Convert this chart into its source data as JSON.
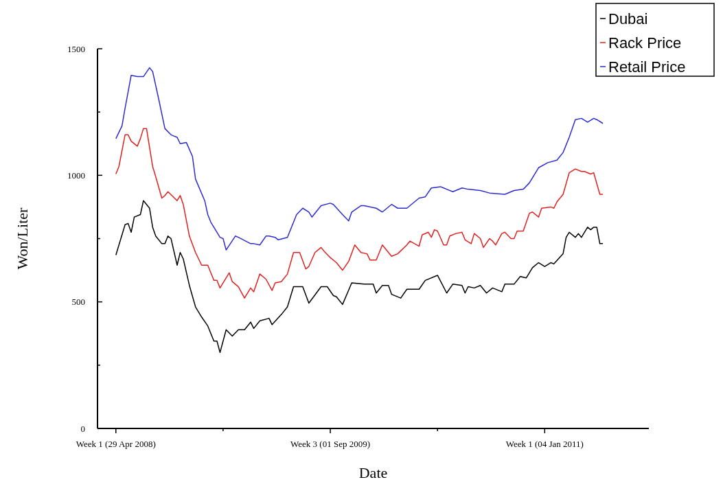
{
  "chart_data": {
    "type": "line",
    "xlabel": "Date",
    "ylabel": "Won/Liter",
    "xlim": [
      "2008-03-18",
      "2011-08-30"
    ],
    "ylim": [
      0,
      1500
    ],
    "xticks": [
      {
        "value": "2008-04-29",
        "label": "Week 1 (29 Apr 2008)"
      },
      {
        "value": "2008-12-30",
        "label": null
      },
      {
        "value": "2009-09-01",
        "label": "Week 3 (01 Sep 2009)"
      },
      {
        "value": "2010-05-04",
        "label": null
      },
      {
        "value": "2011-01-04",
        "label": "Week 1 (04 Jan 2011)"
      }
    ],
    "yticks": [
      0,
      {
        "value": 250,
        "label": null
      },
      500,
      {
        "value": 750,
        "label": null
      },
      1000,
      {
        "value": 1250,
        "label": null
      },
      1500
    ],
    "legend": "top right",
    "series": [
      {
        "name": "Dubai",
        "color": "#000000",
        "x": [
          "2008-04-29",
          "2008-05-06",
          "2008-05-20",
          "2008-05-27",
          "2008-06-03",
          "2008-06-10",
          "2008-06-24",
          "2008-07-01",
          "2008-07-15",
          "2008-07-22",
          "2008-07-29",
          "2008-08-12",
          "2008-08-19",
          "2008-08-26",
          "2008-09-02",
          "2008-09-16",
          "2008-09-23",
          "2008-09-30",
          "2008-10-14",
          "2008-10-28",
          "2008-11-11",
          "2008-11-25",
          "2008-12-09",
          "2008-12-16",
          "2008-12-23",
          "2009-01-06",
          "2009-01-20",
          "2009-02-03",
          "2009-02-17",
          "2009-03-03",
          "2009-03-10",
          "2009-03-24",
          "2009-04-14",
          "2009-04-21",
          "2009-05-12",
          "2009-05-26",
          "2009-06-09",
          "2009-06-30",
          "2009-07-14",
          "2009-08-11",
          "2009-08-25",
          "2009-09-08",
          "2009-09-15",
          "2009-09-29",
          "2009-10-20",
          "2009-11-17",
          "2009-12-08",
          "2009-12-15",
          "2009-12-29",
          "2010-01-12",
          "2010-01-19",
          "2010-02-09",
          "2010-02-23",
          "2010-03-23",
          "2010-04-06",
          "2010-05-04",
          "2010-05-25",
          "2010-06-08",
          "2010-06-29",
          "2010-07-06",
          "2010-07-13",
          "2010-07-27",
          "2010-08-10",
          "2010-08-24",
          "2010-09-07",
          "2010-09-28",
          "2010-10-05",
          "2010-10-26",
          "2010-11-09",
          "2010-11-23",
          "2010-12-07",
          "2010-12-21",
          "2011-01-04",
          "2011-01-18",
          "2011-01-25",
          "2011-02-15",
          "2011-02-22",
          "2011-03-01",
          "2011-03-15",
          "2011-03-22",
          "2011-03-29",
          "2011-04-12",
          "2011-04-19",
          "2011-04-26",
          "2011-05-03",
          "2011-05-10",
          "2011-05-17"
        ],
        "values": [
          685,
          725,
          805,
          810,
          775,
          835,
          845,
          900,
          870,
          795,
          760,
          730,
          730,
          760,
          750,
          645,
          695,
          670,
          565,
          480,
          440,
          405,
          345,
          345,
          300,
          390,
          365,
          390,
          390,
          420,
          395,
          425,
          435,
          410,
          450,
          480,
          560,
          560,
          495,
          560,
          560,
          525,
          520,
          490,
          575,
          570,
          570,
          535,
          565,
          565,
          530,
          515,
          550,
          550,
          585,
          605,
          535,
          570,
          565,
          535,
          560,
          555,
          565,
          535,
          555,
          540,
          570,
          570,
          600,
          595,
          635,
          655,
          640,
          655,
          650,
          690,
          755,
          775,
          755,
          770,
          755,
          795,
          785,
          795,
          795,
          730,
          730
        ]
      },
      {
        "name": "Rack Price",
        "color": "#e0201e",
        "x": [
          "2008-04-29",
          "2008-05-06",
          "2008-05-20",
          "2008-05-27",
          "2008-06-03",
          "2008-06-17",
          "2008-06-24",
          "2008-07-01",
          "2008-07-08",
          "2008-07-22",
          "2008-07-29",
          "2008-08-12",
          "2008-08-19",
          "2008-08-26",
          "2008-09-16",
          "2008-09-23",
          "2008-09-30",
          "2008-10-14",
          "2008-10-28",
          "2008-11-11",
          "2008-11-25",
          "2008-12-09",
          "2008-12-16",
          "2008-12-23",
          "2009-01-13",
          "2009-01-20",
          "2009-02-03",
          "2009-02-17",
          "2009-03-03",
          "2009-03-10",
          "2009-03-24",
          "2009-04-07",
          "2009-04-21",
          "2009-04-28",
          "2009-05-12",
          "2009-05-26",
          "2009-06-09",
          "2009-06-23",
          "2009-07-07",
          "2009-07-14",
          "2009-07-28",
          "2009-08-11",
          "2009-08-18",
          "2009-09-01",
          "2009-09-15",
          "2009-09-29",
          "2009-10-13",
          "2009-10-27",
          "2009-11-10",
          "2009-11-24",
          "2009-12-01",
          "2009-12-15",
          "2009-12-29",
          "2010-01-19",
          "2010-02-02",
          "2010-02-23",
          "2010-03-02",
          "2010-03-23",
          "2010-03-30",
          "2010-04-13",
          "2010-04-20",
          "2010-04-27",
          "2010-05-04",
          "2010-05-18",
          "2010-05-25",
          "2010-06-01",
          "2010-06-15",
          "2010-06-29",
          "2010-07-06",
          "2010-07-20",
          "2010-07-27",
          "2010-08-10",
          "2010-08-17",
          "2010-08-31",
          "2010-09-07",
          "2010-09-14",
          "2010-09-28",
          "2010-10-05",
          "2010-10-19",
          "2010-10-26",
          "2010-11-02",
          "2010-11-16",
          "2010-11-30",
          "2010-12-07",
          "2010-12-21",
          "2010-12-28",
          "2011-01-18",
          "2011-01-25",
          "2011-02-01",
          "2011-02-15",
          "2011-03-01",
          "2011-03-15",
          "2011-03-29",
          "2011-04-05",
          "2011-04-19",
          "2011-04-26",
          "2011-05-10",
          "2011-05-17"
        ],
        "values": [
          1005,
          1035,
          1160,
          1160,
          1135,
          1115,
          1145,
          1185,
          1185,
          1035,
          995,
          910,
          920,
          935,
          900,
          920,
          885,
          760,
          695,
          645,
          645,
          585,
          585,
          555,
          615,
          580,
          560,
          515,
          555,
          540,
          610,
          590,
          545,
          575,
          580,
          610,
          695,
          695,
          630,
          640,
          695,
          715,
          700,
          675,
          655,
          625,
          660,
          725,
          695,
          690,
          665,
          665,
          725,
          680,
          690,
          725,
          740,
          720,
          765,
          775,
          755,
          785,
          780,
          725,
          725,
          760,
          770,
          775,
          745,
          730,
          770,
          750,
          715,
          750,
          740,
          725,
          770,
          775,
          750,
          750,
          780,
          780,
          850,
          855,
          835,
          870,
          875,
          870,
          895,
          925,
          1010,
          1025,
          1015,
          1015,
          1005,
          1010,
          925,
          925
        ]
      },
      {
        "name": "Retail Price",
        "color": "#2b2bd0",
        "x": [
          "2008-04-29",
          "2008-05-13",
          "2008-05-20",
          "2008-06-03",
          "2008-06-17",
          "2008-07-01",
          "2008-07-15",
          "2008-07-22",
          "2008-08-05",
          "2008-08-19",
          "2008-09-02",
          "2008-09-16",
          "2008-09-23",
          "2008-10-07",
          "2008-10-21",
          "2008-10-28",
          "2008-11-18",
          "2008-11-25",
          "2008-12-02",
          "2008-12-23",
          "2008-12-30",
          "2009-01-06",
          "2009-01-27",
          "2009-02-03",
          "2009-03-03",
          "2009-03-10",
          "2009-03-24",
          "2009-04-07",
          "2009-04-14",
          "2009-04-28",
          "2009-05-05",
          "2009-05-26",
          "2009-06-16",
          "2009-06-30",
          "2009-07-14",
          "2009-07-21",
          "2009-08-11",
          "2009-09-01",
          "2009-09-08",
          "2009-09-29",
          "2009-10-13",
          "2009-10-20",
          "2009-11-10",
          "2009-11-17",
          "2009-12-15",
          "2009-12-29",
          "2010-01-19",
          "2010-02-02",
          "2010-02-23",
          "2010-03-23",
          "2010-04-06",
          "2010-04-20",
          "2010-05-11",
          "2010-05-18",
          "2010-05-25",
          "2010-06-08",
          "2010-06-29",
          "2010-07-13",
          "2010-08-10",
          "2010-08-31",
          "2010-10-05",
          "2010-10-26",
          "2010-11-16",
          "2010-11-30",
          "2010-12-21",
          "2011-01-11",
          "2011-02-01",
          "2011-02-15",
          "2011-03-01",
          "2011-03-15",
          "2011-03-29",
          "2011-04-12",
          "2011-04-26",
          "2011-05-03",
          "2011-05-17"
        ],
        "values": [
          1145,
          1195,
          1265,
          1395,
          1390,
          1390,
          1425,
          1410,
          1300,
          1185,
          1160,
          1150,
          1125,
          1130,
          1075,
          985,
          900,
          845,
          815,
          755,
          750,
          705,
          760,
          755,
          730,
          730,
          725,
          760,
          760,
          755,
          745,
          755,
          845,
          870,
          855,
          835,
          880,
          890,
          885,
          845,
          820,
          855,
          880,
          880,
          870,
          855,
          885,
          870,
          870,
          910,
          915,
          950,
          955,
          950,
          945,
          935,
          950,
          945,
          940,
          930,
          925,
          940,
          945,
          970,
          1030,
          1050,
          1060,
          1090,
          1150,
          1220,
          1225,
          1210,
          1225,
          1220,
          1205
        ]
      }
    ]
  }
}
